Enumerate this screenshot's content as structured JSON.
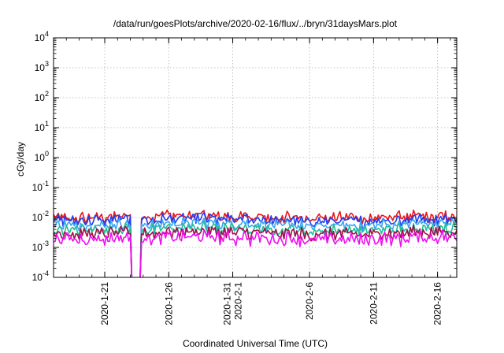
{
  "chart_data": {
    "type": "line",
    "title": "/data/run/goesPlots/archive/2020-02-16/flux/../bryn/31daysMars.plot",
    "xlabel": "Coordinated Universal Time (UTC)",
    "ylabel": "cGy/day",
    "y_scale": "log",
    "ylim": [
      0.0001,
      10000
    ],
    "xlim": [
      "2020-01-17",
      "2020-02-17T12:00"
    ],
    "y_ticks": [
      {
        "value": 0.0001,
        "base": "10",
        "exp": "-4"
      },
      {
        "value": 0.001,
        "base": "10",
        "exp": "-3"
      },
      {
        "value": 0.01,
        "base": "10",
        "exp": "-2"
      },
      {
        "value": 0.1,
        "base": "10",
        "exp": "-1"
      },
      {
        "value": 1,
        "base": "10",
        "exp": "0"
      },
      {
        "value": 10,
        "base": "10",
        "exp": "1"
      },
      {
        "value": 100,
        "base": "10",
        "exp": "2"
      },
      {
        "value": 1000,
        "base": "10",
        "exp": "3"
      },
      {
        "value": 10000,
        "base": "10",
        "exp": "4"
      }
    ],
    "x_ticks": [
      {
        "date": "2020-01-21",
        "lines": [
          "2020-1-21"
        ]
      },
      {
        "date": "2020-01-26",
        "lines": [
          "2020-1-26"
        ]
      },
      {
        "date": "2020-01-31",
        "lines": [
          "2020-1-31",
          "2020-2-1"
        ]
      },
      {
        "date": "2020-02-06",
        "lines": [
          "2020-2-6"
        ]
      },
      {
        "date": "2020-02-11",
        "lines": [
          "2020-2-11"
        ]
      },
      {
        "date": "2020-02-16",
        "lines": [
          "2020-2-16"
        ]
      }
    ],
    "grid": true,
    "colors": {
      "red": "#e8141c",
      "blue": "#1f3ef2",
      "light_blue": "#3aa6f0",
      "teal": "#1fbf96",
      "maroon": "#a0104a",
      "magenta": "#f00ff0"
    },
    "series": [
      {
        "color_key": "red",
        "level": 0.0105,
        "jitter": 0.12
      },
      {
        "color_key": "blue",
        "level": 0.0082,
        "jitter": 0.13
      },
      {
        "color_key": "light_blue",
        "level": 0.0058,
        "jitter": 0.12
      },
      {
        "color_key": "teal",
        "level": 0.004,
        "jitter": 0.14
      },
      {
        "color_key": "maroon",
        "level": 0.003,
        "jitter": 0.15
      },
      {
        "color_key": "magenta",
        "level": 0.002,
        "jitter": 0.18
      }
    ],
    "dropout": {
      "start": "2020-01-23T05:00",
      "end": "2020-01-23T15:00"
    },
    "sample_hours": 3
  }
}
